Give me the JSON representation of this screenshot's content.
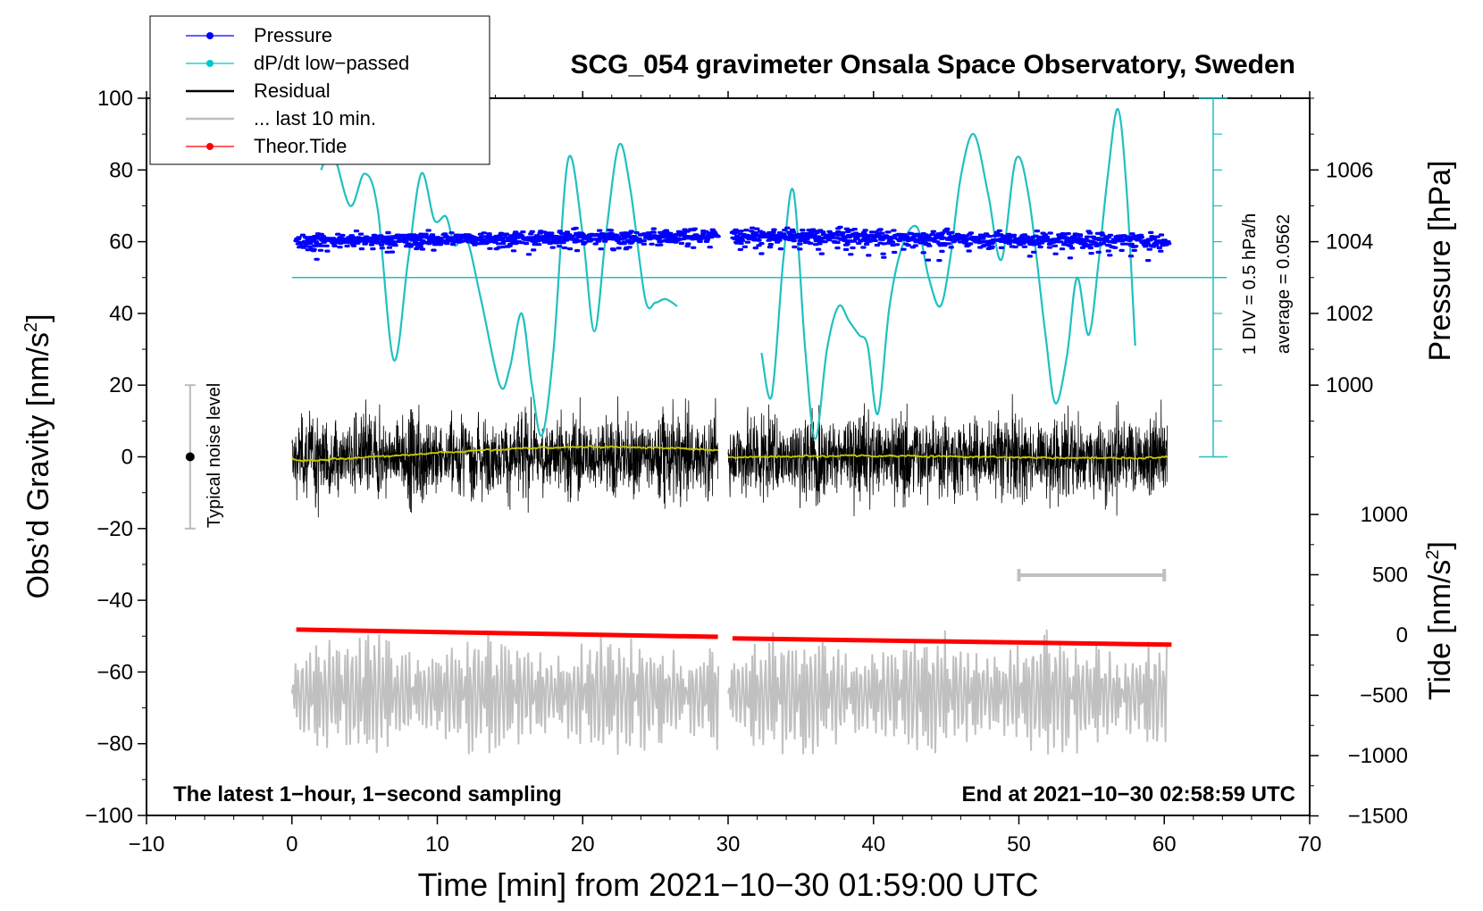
{
  "chart_data": {
    "type": "line",
    "title": "SCG_054 gravimeter Onsala Space Observatory, Sweden",
    "xlabel": "Time [min] from 2021−10−30 01:59:00 UTC",
    "ylabel_left": "Obs’d Gravity [nm/s",
    "ylabel_left_sup": "2",
    "ylabel_left_close": "]",
    "ylabel_pressure": "Pressure [hPa]",
    "ylabel_tide": "Tide [nm/s",
    "ylabel_tide_sup": "2",
    "ylabel_tide_close": "]",
    "xlim": [
      -10,
      70
    ],
    "ylim": [
      -100,
      100
    ],
    "x_ticks": [
      "−10",
      "0",
      "10",
      "20",
      "30",
      "40",
      "50",
      "60",
      "70"
    ],
    "y_ticks": [
      "−100",
      "−80",
      "−60",
      "−40",
      "−20",
      "0",
      "20",
      "40",
      "60",
      "80",
      "100"
    ],
    "pressure_axis": {
      "ticks": [
        "1000",
        "1002",
        "1004",
        "1006"
      ],
      "range": [
        998,
        1008
      ]
    },
    "tide_axis": {
      "ticks": [
        "−1500",
        "−1000",
        "−500",
        "0",
        "500",
        "1000"
      ],
      "range": [
        -1500,
        1500
      ]
    },
    "legend": [
      {
        "label": "Pressure",
        "color": "#0000ff",
        "marker": true
      },
      {
        "label": "dP/dt low−passed",
        "color": "#00c8c8",
        "marker": true
      },
      {
        "label": "Residual",
        "color": "#000000",
        "marker": false
      },
      {
        "label": "... last 10 min.",
        "color": "#bebebe",
        "marker": false
      },
      {
        "label": "Theor.Tide",
        "color": "#ff0000",
        "marker": true
      }
    ],
    "annotations": {
      "noise_level": "Typical noise level",
      "noise_range": [
        -20,
        20
      ],
      "dpdt_scale": "1 DIV = 0.5 hPa/h",
      "dpdt_average": "average = 0.0562",
      "bottom_left": "The latest 1−hour, 1−second sampling",
      "bottom_right": "End at 2021−10−30 02:58:59 UTC"
    },
    "colors": {
      "pressure": "#0000ff",
      "dpdt": "#20c0c0",
      "residual": "#000000",
      "residual_smooth": "#c8c800",
      "last10": "#c0c0c0",
      "tide": "#ff0000"
    },
    "series": [
      {
        "name": "Pressure",
        "unit": "hPa",
        "segments": [
          {
            "x0": 0.3,
            "x1": 29.3,
            "mean": 1004.1,
            "trend": 0.15,
            "spread": 0.18
          },
          {
            "x0": 30.3,
            "x1": 60.3,
            "mean": 1004.1,
            "trend": -0.15,
            "spread": 0.2
          }
        ]
      },
      {
        "name": "dP/dt low-passed",
        "unit": "gravity axis",
        "baseline": 50,
        "segments": [
          {
            "x": [
              2,
              2.8,
              4,
              5,
              5.9,
              7,
              8,
              8.9,
              9.8,
              10.6,
              11.2,
              12,
              13,
              14.3,
              15,
              15.8,
              16.5,
              17.2,
              18,
              19,
              20,
              20.8,
              21.6,
              22.5,
              23.3,
              24.3,
              25,
              25.7,
              26.5
            ],
            "y": [
              80,
              85,
              70,
              79,
              69,
              27,
              55,
              79,
              66,
              67,
              59,
              61,
              44,
              20,
              25,
              40,
              20,
              6,
              30,
              83,
              62,
              35,
              62,
              87,
              74,
              44,
              43,
              44,
              42
            ]
          },
          {
            "x": [
              32.3,
              33,
              33.8,
              34.5,
              35.3,
              36,
              36.8,
              37.6,
              38.3,
              39,
              39.6,
              40.3,
              41.1,
              42,
              43,
              43.8,
              44.6,
              45.3,
              46,
              46.9,
              47.9,
              48.8,
              49.8,
              50.7,
              51.8,
              52.5,
              53.3,
              54,
              54.8,
              55.5,
              56.1,
              56.8,
              57.4,
              58
            ],
            "y": [
              29,
              17,
              55,
              74,
              30,
              5,
              30,
              42,
              38,
              34,
              31,
              12,
              42,
              59,
              64,
              50,
              42,
              56,
              78,
              90,
              73,
              55,
              83,
              72,
              35,
              15,
              28,
              50,
              34,
              55,
              78,
              97,
              75,
              31
            ]
          }
        ]
      },
      {
        "name": "Residual",
        "unit": "nm/s2",
        "segments": [
          {
            "x0": 0,
            "x1": 29.3
          },
          {
            "x0": 30,
            "x1": 60.2
          }
        ],
        "amplitude": 10
      },
      {
        "name": "... last 10 min.",
        "unit": "nm/s2",
        "segments": [
          {
            "x0": 0,
            "x1": 29.3
          },
          {
            "x0": 30,
            "x1": 60.2
          }
        ],
        "center": -66,
        "amplitude": 12
      },
      {
        "name": "Theor.Tide",
        "unit": "nm/s2",
        "x": [
          0.3,
          29.3,
          30.3,
          60.5
        ],
        "y": [
          45,
          -15,
          -28,
          -80
        ]
      }
    ],
    "last10_bracket": [
      50,
      60
    ]
  }
}
